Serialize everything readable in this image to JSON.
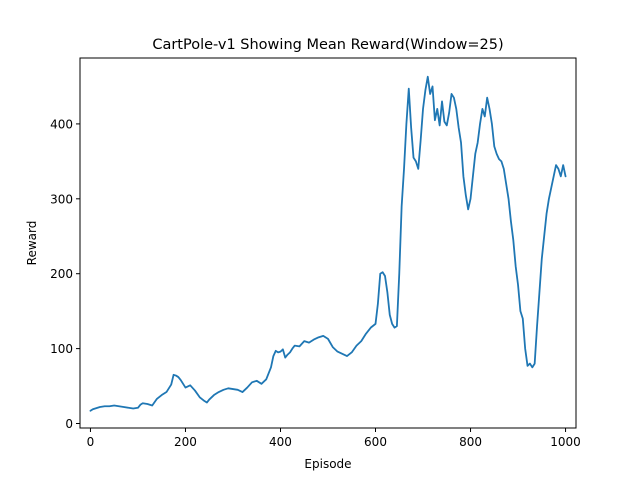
{
  "chart_data": {
    "type": "line",
    "title": "CartPole-v1 Showing Mean Reward(Window=25)",
    "xlabel": "Episode",
    "ylabel": "Reward",
    "xlim": [
      -22,
      1022
    ],
    "ylim": [
      -6,
      488
    ],
    "xticks": [
      0,
      200,
      400,
      600,
      800,
      1000
    ],
    "yticks": [
      0,
      100,
      200,
      300,
      400
    ],
    "grid": false,
    "legend": "none",
    "series": [
      {
        "color": "#1f77b4",
        "x": [
          0,
          5,
          10,
          20,
          30,
          40,
          50,
          60,
          70,
          80,
          90,
          100,
          105,
          110,
          120,
          130,
          140,
          150,
          160,
          170,
          175,
          180,
          185,
          190,
          195,
          200,
          210,
          220,
          230,
          240,
          245,
          250,
          260,
          270,
          280,
          290,
          300,
          310,
          320,
          330,
          340,
          350,
          360,
          370,
          380,
          385,
          390,
          395,
          400,
          405,
          410,
          415,
          420,
          425,
          430,
          440,
          450,
          460,
          470,
          480,
          490,
          500,
          510,
          520,
          530,
          540,
          550,
          560,
          570,
          580,
          590,
          600,
          605,
          610,
          615,
          620,
          625,
          630,
          635,
          640,
          645,
          650,
          655,
          660,
          665,
          670,
          675,
          680,
          685,
          690,
          695,
          700,
          705,
          710,
          715,
          720,
          725,
          730,
          735,
          740,
          745,
          750,
          755,
          760,
          765,
          770,
          775,
          780,
          785,
          790,
          795,
          800,
          805,
          810,
          815,
          820,
          825,
          830,
          835,
          840,
          845,
          850,
          855,
          860,
          865,
          870,
          875,
          880,
          885,
          890,
          895,
          900,
          905,
          910,
          915,
          920,
          925,
          930,
          935,
          940,
          945,
          950,
          955,
          960,
          965,
          970,
          975,
          980,
          985,
          990,
          995,
          1000
        ],
        "y": [
          17,
          19,
          20,
          22,
          23,
          23,
          24,
          23,
          22,
          21,
          20,
          21,
          25,
          27,
          26,
          24,
          33,
          38,
          42,
          52,
          65,
          64,
          62,
          58,
          53,
          48,
          51,
          44,
          35,
          30,
          28,
          32,
          38,
          42,
          45,
          47,
          46,
          45,
          42,
          48,
          55,
          57,
          53,
          59,
          75,
          90,
          97,
          95,
          96,
          99,
          88,
          92,
          95,
          100,
          104,
          103,
          110,
          108,
          112,
          115,
          117,
          113,
          102,
          96,
          93,
          90,
          95,
          104,
          110,
          120,
          128,
          133,
          160,
          200,
          202,
          197,
          175,
          145,
          133,
          128,
          130,
          200,
          290,
          340,
          400,
          447,
          395,
          355,
          350,
          340,
          378,
          420,
          445,
          463,
          440,
          450,
          405,
          420,
          398,
          430,
          403,
          398,
          415,
          440,
          435,
          420,
          395,
          375,
          330,
          305,
          286,
          300,
          330,
          360,
          375,
          400,
          420,
          410,
          435,
          420,
          400,
          370,
          360,
          353,
          350,
          340,
          320,
          300,
          270,
          245,
          210,
          185,
          150,
          140,
          100,
          77,
          80,
          75,
          80,
          130,
          175,
          220,
          250,
          280,
          300,
          315,
          330,
          345,
          340,
          330,
          345,
          330
        ]
      }
    ]
  }
}
